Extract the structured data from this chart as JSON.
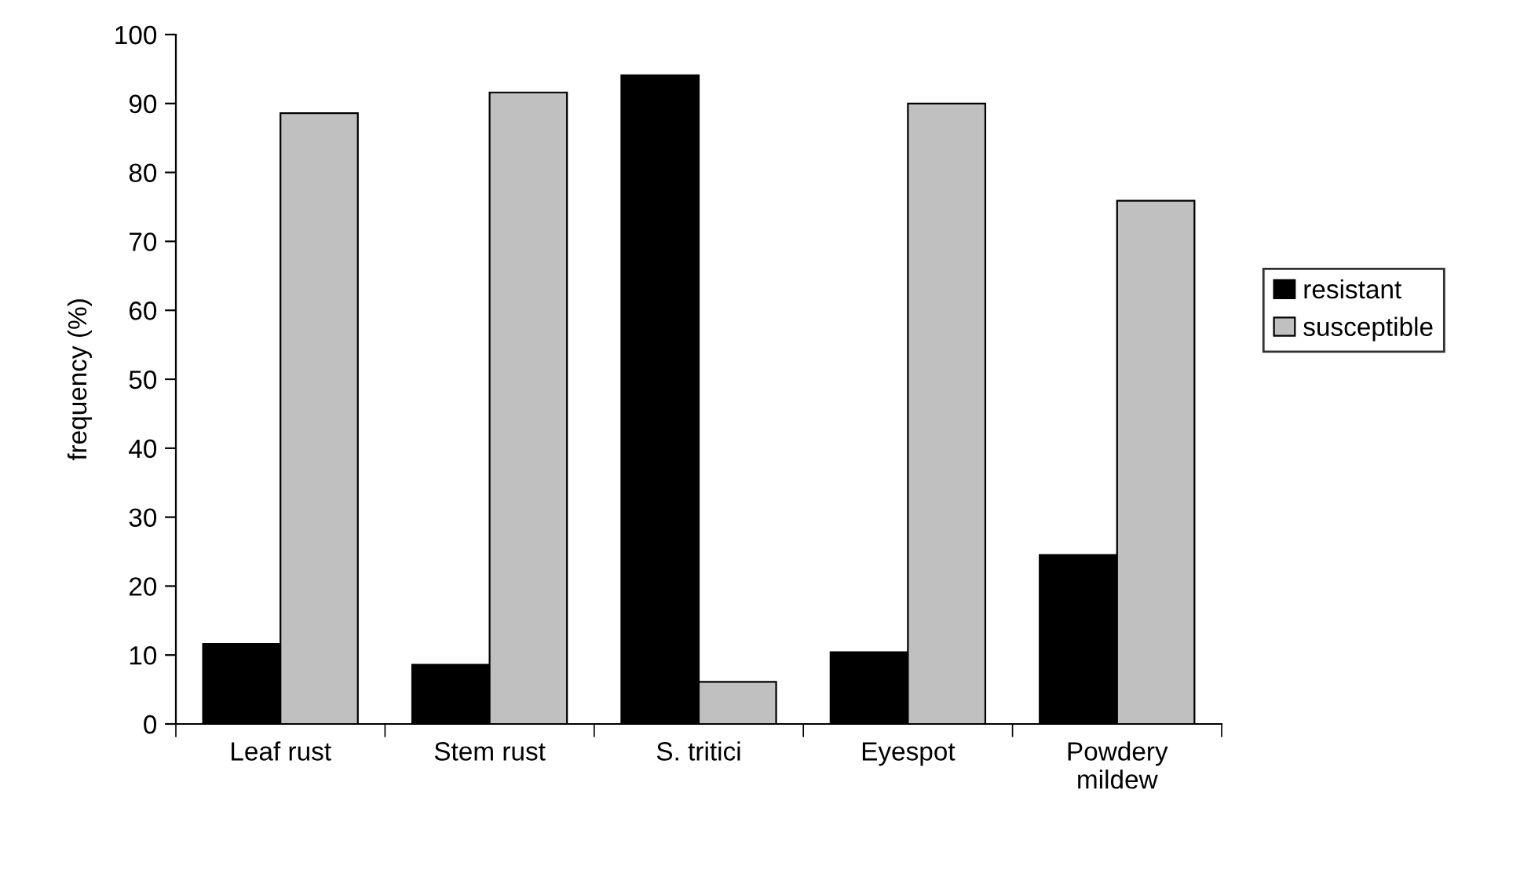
{
  "chart_data": {
    "type": "bar",
    "ylabel": "frequency (%)",
    "categories": [
      "Leaf rust",
      "Stem rust",
      "S. tritici",
      "Eyespot",
      "Powdery\nmildew"
    ],
    "series": [
      {
        "name": "resistant",
        "color": "#000000",
        "values": [
          11.6,
          8.6,
          94.1,
          10.4,
          24.5
        ]
      },
      {
        "name": "susceptible",
        "color": "#c0c0c0",
        "values": [
          88.6,
          91.6,
          6.1,
          90,
          75.9
        ]
      }
    ],
    "ylim": [
      0,
      100
    ],
    "yticks": [
      0,
      10,
      20,
      30,
      40,
      50,
      60,
      70,
      80,
      90,
      100
    ],
    "legend": "right"
  }
}
